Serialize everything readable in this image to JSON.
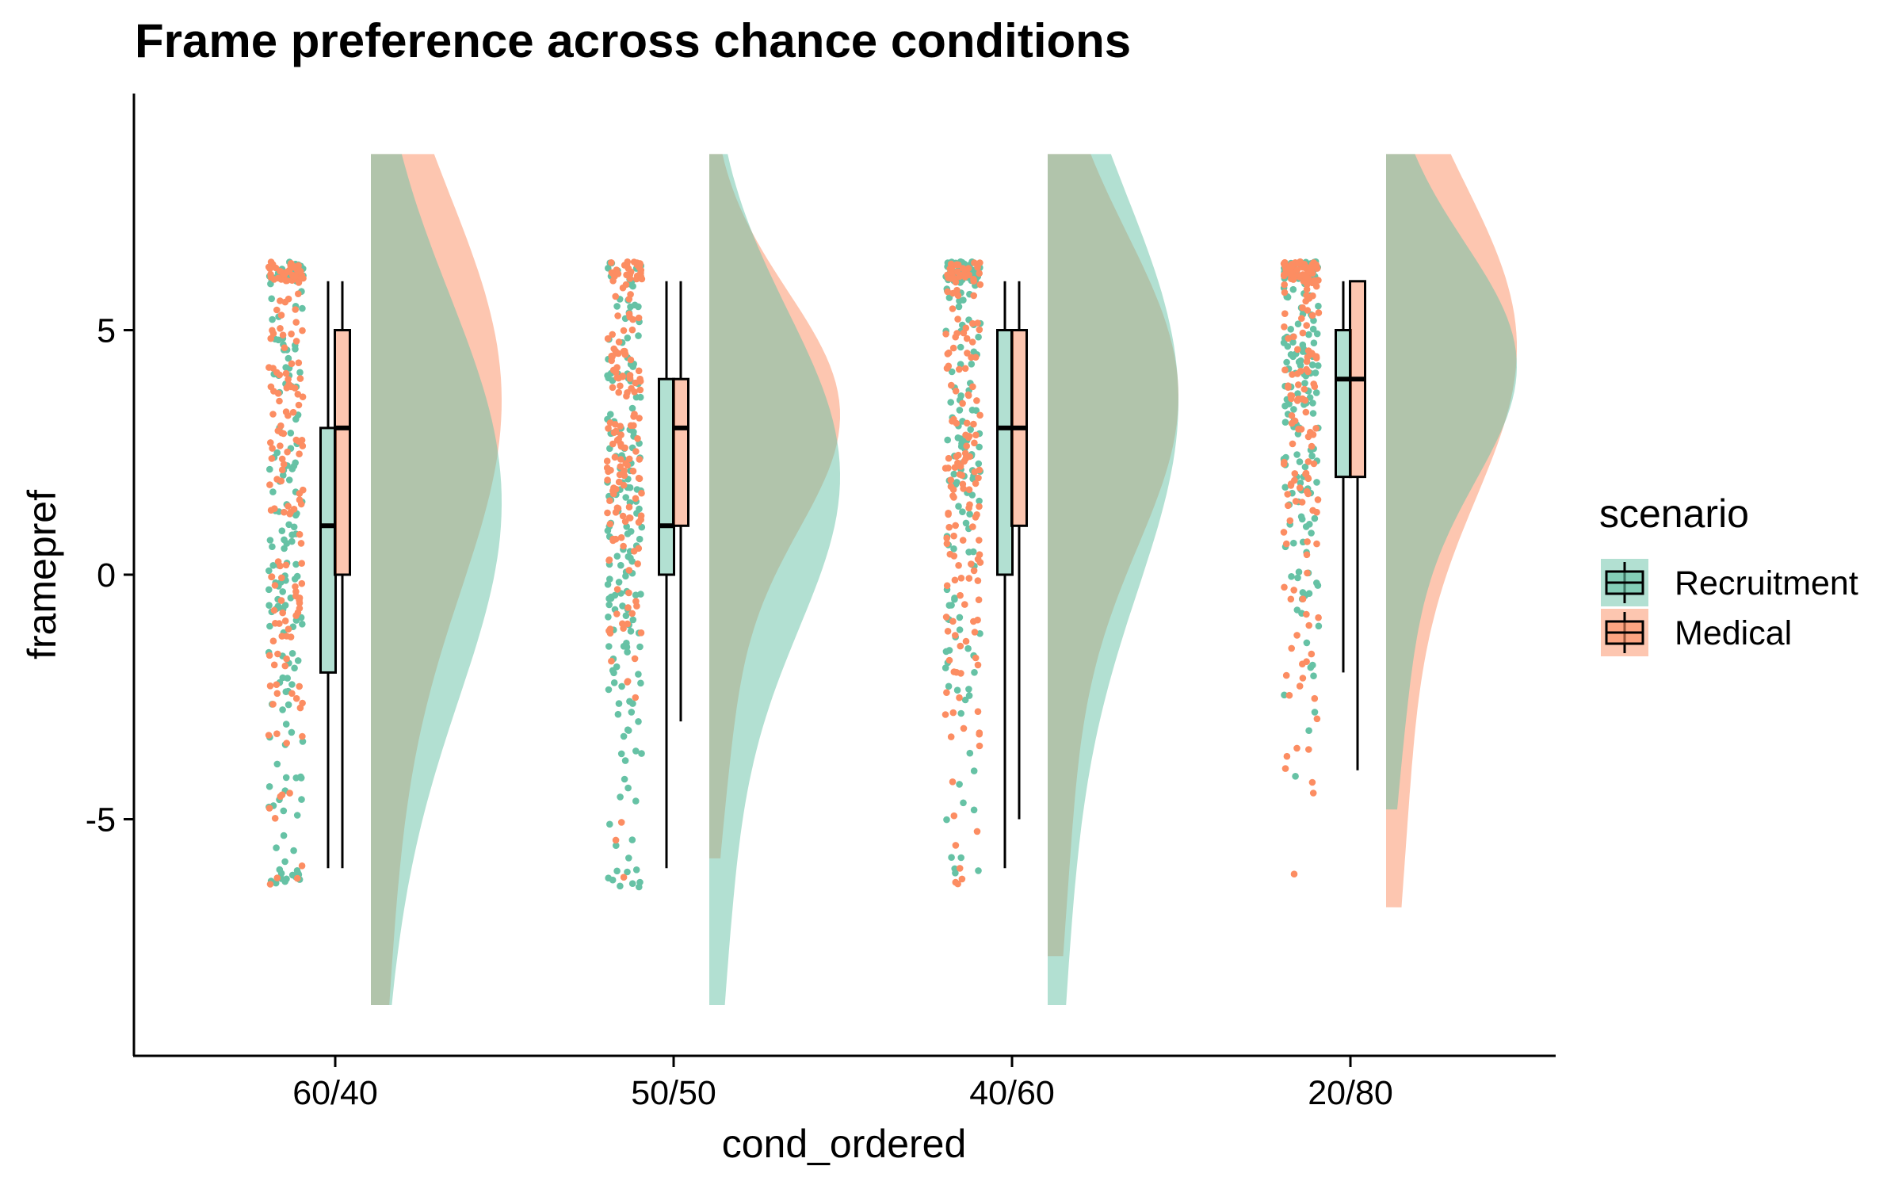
{
  "chart_data": {
    "type": "raincloud",
    "title": "Frame preference across chance conditions",
    "xlabel": "cond_ordered",
    "ylabel": "framepref",
    "categories": [
      "60/40",
      "50/50",
      "40/60",
      "20/80"
    ],
    "y_ticks": [
      -5,
      0,
      5
    ],
    "ylim": [
      -9.8,
      9.8
    ],
    "grid": false,
    "legend": {
      "title": "scenario",
      "placement": "right"
    },
    "series": [
      {
        "name": "Recruitment",
        "color": "#66c2a5",
        "boxplot": [
          {
            "min": -6,
            "q1": -2,
            "median": 1,
            "q3": 3,
            "max": 6
          },
          {
            "min": -6,
            "q1": 0,
            "median": 1,
            "q3": 4,
            "max": 6
          },
          {
            "min": -6,
            "q1": 0,
            "median": 3,
            "q3": 5,
            "max": 6
          },
          {
            "min": -2,
            "q1": 2,
            "median": 4,
            "q3": 5,
            "max": 6
          }
        ]
      },
      {
        "name": "Medical",
        "color": "#fc8d62",
        "boxplot": [
          {
            "min": -6,
            "q1": 0,
            "median": 3,
            "q3": 5,
            "max": 6
          },
          {
            "min": -3,
            "q1": 1,
            "median": 3,
            "q3": 4,
            "max": 6
          },
          {
            "min": -5,
            "q1": 1,
            "median": 3,
            "q3": 5,
            "max": 6
          },
          {
            "min": -4,
            "q1": 2,
            "median": 4,
            "q3": 6,
            "max": 6
          }
        ]
      }
    ]
  }
}
